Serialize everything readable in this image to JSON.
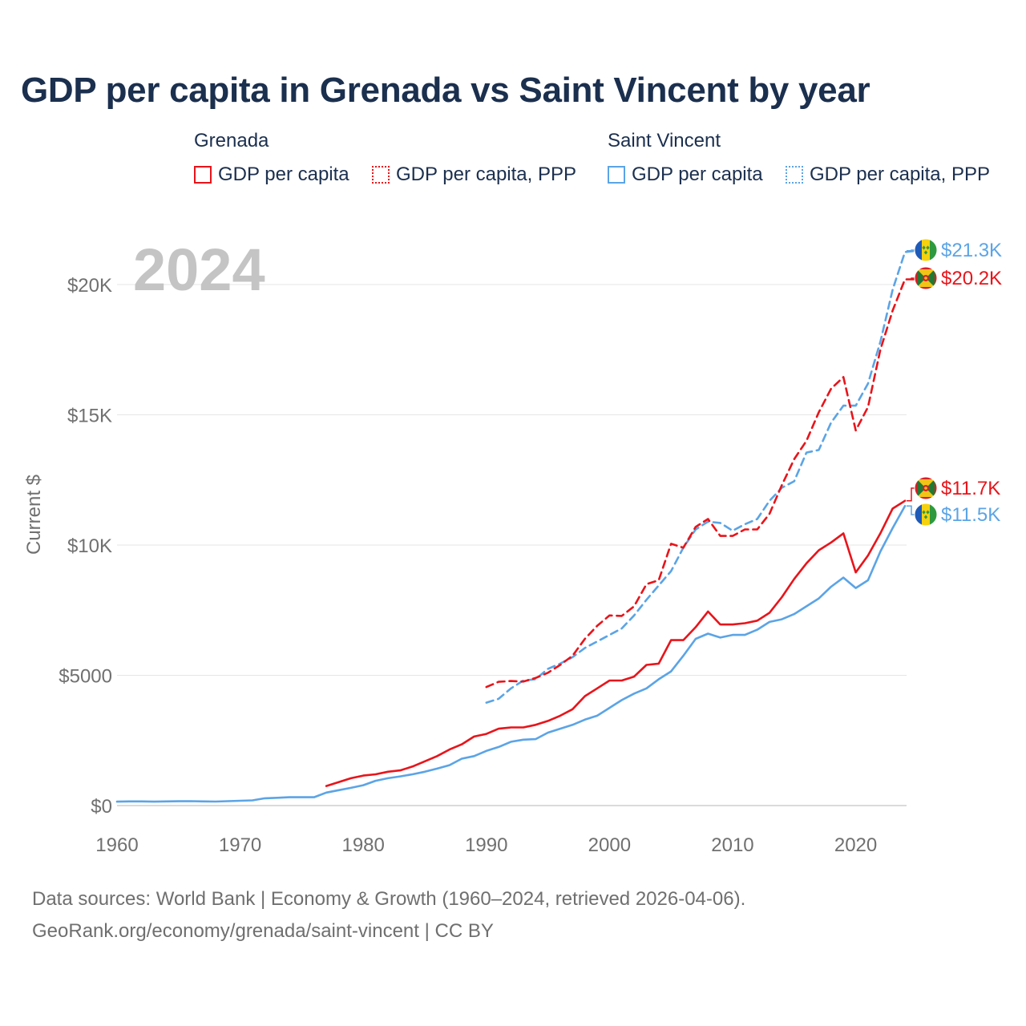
{
  "title": "GDP per capita in Grenada vs Saint Vincent by year",
  "legend": {
    "groups": [
      {
        "name": "Grenada",
        "items": [
          "GDP per capita",
          "GDP per capita, PPP"
        ]
      },
      {
        "name": "Saint Vincent",
        "items": [
          "GDP per capita",
          "GDP per capita, PPP"
        ]
      }
    ]
  },
  "year_watermark": "2024",
  "footer": {
    "line1": "Data sources: World Bank | Economy & Growth (1960–2024, retrieved 2026-04-06).",
    "line2": "GeoRank.org/economy/grenada/saint-vincent | CC BY"
  },
  "colors": {
    "grenada": "#e8141a",
    "saint_vincent": "#5ba4e6"
  },
  "chart_data": {
    "type": "line",
    "title": "GDP per capita in Grenada vs Saint Vincent by year",
    "xlabel": "",
    "ylabel": "Current $",
    "xlim": [
      1960,
      2024
    ],
    "ylim": [
      0,
      20000
    ],
    "x_ticks": [
      {
        "value": 1960,
        "label": "1960"
      },
      {
        "value": 1970,
        "label": "1970"
      },
      {
        "value": 1980,
        "label": "1980"
      },
      {
        "value": 1990,
        "label": "1990"
      },
      {
        "value": 2000,
        "label": "2000"
      },
      {
        "value": 2010,
        "label": "2010"
      },
      {
        "value": 2020,
        "label": "2020"
      }
    ],
    "y_ticks": [
      {
        "value": 0,
        "label": "$0"
      },
      {
        "value": 5000,
        "label": "$5000"
      },
      {
        "value": 10000,
        "label": "$10K"
      },
      {
        "value": 15000,
        "label": "$15K"
      },
      {
        "value": 20000,
        "label": "$20K"
      }
    ],
    "grid": true,
    "series": [
      {
        "id": "svg_ppp",
        "name": "Saint Vincent GDP per capita, PPP",
        "country": "Saint Vincent",
        "color": "#5ba4e6",
        "dashed": true,
        "start": 1990,
        "end_label": "$21.3K",
        "flag": "saint-vincent",
        "values": [
          3950,
          4100,
          4500,
          4800,
          4850,
          5250,
          5450,
          5700,
          6050,
          6300,
          6550,
          6800,
          7300,
          7900,
          8450,
          9000,
          9900,
          10600,
          10900,
          10850,
          10550,
          10800,
          11000,
          11700,
          12200,
          12450,
          13550,
          13650,
          14700,
          15350,
          15350,
          16200,
          17800,
          19800,
          21250,
          21300
        ]
      },
      {
        "id": "gre_ppp",
        "name": "Grenada GDP per capita, PPP",
        "country": "Grenada",
        "color": "#e8141a",
        "dashed": true,
        "start": 1990,
        "end_label": "$20.2K",
        "flag": "grenada",
        "values": [
          4550,
          4750,
          4780,
          4760,
          4900,
          5100,
          5400,
          5750,
          6400,
          6900,
          7300,
          7280,
          7650,
          8500,
          8650,
          10050,
          9900,
          10700,
          11000,
          10350,
          10350,
          10600,
          10600,
          11200,
          12300,
          13300,
          14000,
          15100,
          16000,
          16450,
          14400,
          15300,
          17500,
          19000,
          20200,
          20200
        ]
      },
      {
        "id": "gre_gdp",
        "name": "Grenada GDP per capita",
        "country": "Grenada",
        "color": "#e8141a",
        "dashed": false,
        "start": 1977,
        "end_label": "$11.7K",
        "flag": "grenada",
        "values": [
          750,
          900,
          1050,
          1150,
          1200,
          1300,
          1350,
          1500,
          1700,
          1900,
          2150,
          2350,
          2650,
          2750,
          2950,
          3000,
          3000,
          3100,
          3250,
          3450,
          3700,
          4200,
          4500,
          4800,
          4800,
          4950,
          5400,
          5450,
          6350,
          6350,
          6850,
          7450,
          6950,
          6950,
          7000,
          7100,
          7400,
          8000,
          8700,
          9300,
          9800,
          10100,
          10450,
          8950,
          9600,
          10450,
          11400,
          11700
        ]
      },
      {
        "id": "svg_gdp",
        "name": "Saint Vincent GDP per capita",
        "country": "Saint Vincent",
        "color": "#5ba4e6",
        "dashed": false,
        "start": 1960,
        "end_label": "$11.5K",
        "flag": "saint-vincent",
        "values": [
          150,
          160,
          160,
          150,
          160,
          165,
          170,
          160,
          155,
          170,
          185,
          200,
          280,
          300,
          320,
          320,
          320,
          500,
          590,
          680,
          780,
          950,
          1050,
          1120,
          1200,
          1300,
          1420,
          1550,
          1800,
          1900,
          2100,
          2250,
          2450,
          2530,
          2550,
          2800,
          2950,
          3100,
          3300,
          3450,
          3750,
          4050,
          4300,
          4500,
          4850,
          5150,
          5750,
          6400,
          6600,
          6450,
          6550,
          6550,
          6750,
          7050,
          7150,
          7350,
          7650,
          7950,
          8400,
          8750,
          8350,
          8650,
          9750,
          10650,
          11500
        ]
      }
    ]
  }
}
